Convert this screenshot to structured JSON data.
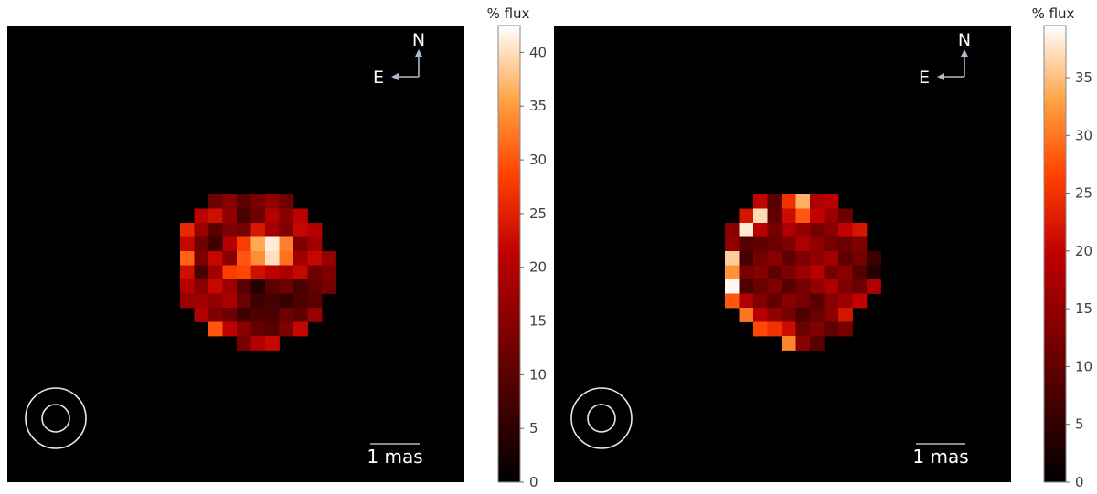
{
  "chart_data": [
    {
      "type": "heatmap",
      "colormap": "gist_heat",
      "background": "#000000",
      "colorbar": {
        "label": "% flux",
        "vmin": 0,
        "vmax": 42.5,
        "ticks": [
          0,
          5,
          10,
          15,
          20,
          25,
          30,
          35,
          40
        ]
      },
      "compass": {
        "north": "N",
        "east": "E"
      },
      "scale_bar": {
        "label": "1 mas"
      },
      "pixels": [
        {
          "row": 0,
          "col": 2,
          "value": 12
        },
        {
          "row": 0,
          "col": 3,
          "value": 15
        },
        {
          "row": 0,
          "col": 4,
          "value": 10
        },
        {
          "row": 0,
          "col": 5,
          "value": 13
        },
        {
          "row": 0,
          "col": 6,
          "value": 16
        },
        {
          "row": 0,
          "col": 7,
          "value": 12
        },
        {
          "row": 1,
          "col": 1,
          "value": 21
        },
        {
          "row": 1,
          "col": 2,
          "value": 23
        },
        {
          "row": 1,
          "col": 3,
          "value": 16
        },
        {
          "row": 1,
          "col": 4,
          "value": 8
        },
        {
          "row": 1,
          "col": 5,
          "value": 12
        },
        {
          "row": 1,
          "col": 6,
          "value": 20
        },
        {
          "row": 1,
          "col": 7,
          "value": 15
        },
        {
          "row": 1,
          "col": 8,
          "value": 21
        },
        {
          "row": 2,
          "col": 0,
          "value": 26
        },
        {
          "row": 2,
          "col": 1,
          "value": 17
        },
        {
          "row": 2,
          "col": 2,
          "value": 10
        },
        {
          "row": 2,
          "col": 3,
          "value": 14
        },
        {
          "row": 2,
          "col": 4,
          "value": 13
        },
        {
          "row": 2,
          "col": 5,
          "value": 24
        },
        {
          "row": 2,
          "col": 6,
          "value": 18
        },
        {
          "row": 2,
          "col": 7,
          "value": 14
        },
        {
          "row": 2,
          "col": 8,
          "value": 22
        },
        {
          "row": 2,
          "col": 9,
          "value": 20
        },
        {
          "row": 3,
          "col": 0,
          "value": 22
        },
        {
          "row": 3,
          "col": 1,
          "value": 12
        },
        {
          "row": 3,
          "col": 2,
          "value": 7
        },
        {
          "row": 3,
          "col": 3,
          "value": 20
        },
        {
          "row": 3,
          "col": 4,
          "value": 28
        },
        {
          "row": 3,
          "col": 5,
          "value": 36
        },
        {
          "row": 3,
          "col": 6,
          "value": 41
        },
        {
          "row": 3,
          "col": 7,
          "value": 33
        },
        {
          "row": 3,
          "col": 8,
          "value": 14
        },
        {
          "row": 3,
          "col": 9,
          "value": 18
        },
        {
          "row": 4,
          "col": 0,
          "value": 31
        },
        {
          "row": 4,
          "col": 1,
          "value": 14
        },
        {
          "row": 4,
          "col": 2,
          "value": 22
        },
        {
          "row": 4,
          "col": 3,
          "value": 15
        },
        {
          "row": 4,
          "col": 4,
          "value": 30
        },
        {
          "row": 4,
          "col": 5,
          "value": 34
        },
        {
          "row": 4,
          "col": 6,
          "value": 40
        },
        {
          "row": 4,
          "col": 7,
          "value": 32
        },
        {
          "row": 4,
          "col": 8,
          "value": 18
        },
        {
          "row": 4,
          "col": 9,
          "value": 22
        },
        {
          "row": 4,
          "col": 10,
          "value": 17
        },
        {
          "row": 5,
          "col": 0,
          "value": 23
        },
        {
          "row": 5,
          "col": 1,
          "value": 8
        },
        {
          "row": 5,
          "col": 2,
          "value": 18
        },
        {
          "row": 5,
          "col": 3,
          "value": 28
        },
        {
          "row": 5,
          "col": 4,
          "value": 29
        },
        {
          "row": 5,
          "col": 5,
          "value": 23
        },
        {
          "row": 5,
          "col": 6,
          "value": 21
        },
        {
          "row": 5,
          "col": 7,
          "value": 19
        },
        {
          "row": 5,
          "col": 8,
          "value": 22
        },
        {
          "row": 5,
          "col": 9,
          "value": 12
        },
        {
          "row": 5,
          "col": 10,
          "value": 14
        },
        {
          "row": 6,
          "col": 0,
          "value": 20
        },
        {
          "row": 6,
          "col": 1,
          "value": 15
        },
        {
          "row": 6,
          "col": 2,
          "value": 22
        },
        {
          "row": 6,
          "col": 3,
          "value": 17
        },
        {
          "row": 6,
          "col": 4,
          "value": 10
        },
        {
          "row": 6,
          "col": 5,
          "value": 4
        },
        {
          "row": 6,
          "col": 6,
          "value": 10
        },
        {
          "row": 6,
          "col": 7,
          "value": 12
        },
        {
          "row": 6,
          "col": 8,
          "value": 8
        },
        {
          "row": 6,
          "col": 9,
          "value": 11
        },
        {
          "row": 6,
          "col": 10,
          "value": 13
        },
        {
          "row": 7,
          "col": 0,
          "value": 17
        },
        {
          "row": 7,
          "col": 1,
          "value": 18
        },
        {
          "row": 7,
          "col": 2,
          "value": 16
        },
        {
          "row": 7,
          "col": 3,
          "value": 19
        },
        {
          "row": 7,
          "col": 4,
          "value": 12
        },
        {
          "row": 7,
          "col": 5,
          "value": 7
        },
        {
          "row": 7,
          "col": 6,
          "value": 8
        },
        {
          "row": 7,
          "col": 7,
          "value": 6
        },
        {
          "row": 7,
          "col": 8,
          "value": 9
        },
        {
          "row": 7,
          "col": 9,
          "value": 10
        },
        {
          "row": 8,
          "col": 1,
          "value": 20
        },
        {
          "row": 8,
          "col": 2,
          "value": 14
        },
        {
          "row": 8,
          "col": 3,
          "value": 12
        },
        {
          "row": 8,
          "col": 4,
          "value": 7
        },
        {
          "row": 8,
          "col": 5,
          "value": 9
        },
        {
          "row": 8,
          "col": 6,
          "value": 8
        },
        {
          "row": 8,
          "col": 7,
          "value": 12
        },
        {
          "row": 8,
          "col": 8,
          "value": 10
        },
        {
          "row": 8,
          "col": 9,
          "value": 17
        },
        {
          "row": 9,
          "col": 2,
          "value": 30
        },
        {
          "row": 9,
          "col": 3,
          "value": 21
        },
        {
          "row": 9,
          "col": 4,
          "value": 15
        },
        {
          "row": 9,
          "col": 5,
          "value": 11
        },
        {
          "row": 9,
          "col": 6,
          "value": 10
        },
        {
          "row": 9,
          "col": 7,
          "value": 14
        },
        {
          "row": 9,
          "col": 8,
          "value": 22
        },
        {
          "row": 10,
          "col": 4,
          "value": 13
        },
        {
          "row": 10,
          "col": 5,
          "value": 20
        },
        {
          "row": 10,
          "col": 6,
          "value": 22
        }
      ]
    },
    {
      "type": "heatmap",
      "colormap": "gist_heat",
      "background": "#000000",
      "colorbar": {
        "label": "% flux",
        "vmin": 0,
        "vmax": 39.5,
        "ticks": [
          0,
          5,
          10,
          15,
          20,
          25,
          30,
          35
        ]
      },
      "compass": {
        "north": "N",
        "east": "E"
      },
      "scale_bar": {
        "label": "1 mas"
      },
      "pixels": [
        {
          "row": 0,
          "col": 2,
          "value": 20
        },
        {
          "row": 0,
          "col": 3,
          "value": 9
        },
        {
          "row": 0,
          "col": 4,
          "value": 25
        },
        {
          "row": 0,
          "col": 5,
          "value": 34
        },
        {
          "row": 0,
          "col": 6,
          "value": 18
        },
        {
          "row": 0,
          "col": 7,
          "value": 19
        },
        {
          "row": 1,
          "col": 1,
          "value": 22
        },
        {
          "row": 1,
          "col": 2,
          "value": 37
        },
        {
          "row": 1,
          "col": 3,
          "value": 10
        },
        {
          "row": 1,
          "col": 4,
          "value": 21
        },
        {
          "row": 1,
          "col": 5,
          "value": 28
        },
        {
          "row": 1,
          "col": 6,
          "value": 20
        },
        {
          "row": 1,
          "col": 7,
          "value": 16
        },
        {
          "row": 1,
          "col": 8,
          "value": 11
        },
        {
          "row": 2,
          "col": 0,
          "value": 14
        },
        {
          "row": 2,
          "col": 1,
          "value": 38
        },
        {
          "row": 2,
          "col": 2,
          "value": 19
        },
        {
          "row": 2,
          "col": 3,
          "value": 12
        },
        {
          "row": 2,
          "col": 4,
          "value": 18
        },
        {
          "row": 2,
          "col": 5,
          "value": 15
        },
        {
          "row": 2,
          "col": 6,
          "value": 12
        },
        {
          "row": 2,
          "col": 7,
          "value": 14
        },
        {
          "row": 2,
          "col": 8,
          "value": 20
        },
        {
          "row": 2,
          "col": 9,
          "value": 22
        },
        {
          "row": 3,
          "col": 0,
          "value": 15
        },
        {
          "row": 3,
          "col": 1,
          "value": 9
        },
        {
          "row": 3,
          "col": 2,
          "value": 10
        },
        {
          "row": 3,
          "col": 3,
          "value": 11
        },
        {
          "row": 3,
          "col": 4,
          "value": 13
        },
        {
          "row": 3,
          "col": 5,
          "value": 18
        },
        {
          "row": 3,
          "col": 6,
          "value": 15
        },
        {
          "row": 3,
          "col": 7,
          "value": 12
        },
        {
          "row": 3,
          "col": 8,
          "value": 11
        },
        {
          "row": 3,
          "col": 9,
          "value": 13
        },
        {
          "row": 4,
          "col": 0,
          "value": 36
        },
        {
          "row": 4,
          "col": 1,
          "value": 7
        },
        {
          "row": 4,
          "col": 2,
          "value": 12
        },
        {
          "row": 4,
          "col": 3,
          "value": 14
        },
        {
          "row": 4,
          "col": 4,
          "value": 10
        },
        {
          "row": 4,
          "col": 5,
          "value": 13
        },
        {
          "row": 4,
          "col": 6,
          "value": 15
        },
        {
          "row": 4,
          "col": 7,
          "value": 17
        },
        {
          "row": 4,
          "col": 8,
          "value": 10
        },
        {
          "row": 4,
          "col": 9,
          "value": 12
        },
        {
          "row": 4,
          "col": 10,
          "value": 6
        },
        {
          "row": 5,
          "col": 0,
          "value": 32
        },
        {
          "row": 5,
          "col": 1,
          "value": 12
        },
        {
          "row": 5,
          "col": 2,
          "value": 14
        },
        {
          "row": 5,
          "col": 3,
          "value": 10
        },
        {
          "row": 5,
          "col": 4,
          "value": 13
        },
        {
          "row": 5,
          "col": 5,
          "value": 16
        },
        {
          "row": 5,
          "col": 6,
          "value": 19
        },
        {
          "row": 5,
          "col": 7,
          "value": 12
        },
        {
          "row": 5,
          "col": 8,
          "value": 14
        },
        {
          "row": 5,
          "col": 9,
          "value": 9
        },
        {
          "row": 5,
          "col": 10,
          "value": 4
        },
        {
          "row": 6,
          "col": 0,
          "value": 39
        },
        {
          "row": 6,
          "col": 1,
          "value": 8
        },
        {
          "row": 6,
          "col": 2,
          "value": 11
        },
        {
          "row": 6,
          "col": 3,
          "value": 13
        },
        {
          "row": 6,
          "col": 4,
          "value": 9
        },
        {
          "row": 6,
          "col": 5,
          "value": 12
        },
        {
          "row": 6,
          "col": 6,
          "value": 15
        },
        {
          "row": 6,
          "col": 7,
          "value": 18
        },
        {
          "row": 6,
          "col": 8,
          "value": 13
        },
        {
          "row": 6,
          "col": 9,
          "value": 11
        },
        {
          "row": 6,
          "col": 10,
          "value": 18
        },
        {
          "row": 7,
          "col": 0,
          "value": 28
        },
        {
          "row": 7,
          "col": 1,
          "value": 18
        },
        {
          "row": 7,
          "col": 2,
          "value": 13
        },
        {
          "row": 7,
          "col": 3,
          "value": 10
        },
        {
          "row": 7,
          "col": 4,
          "value": 14
        },
        {
          "row": 7,
          "col": 5,
          "value": 12
        },
        {
          "row": 7,
          "col": 6,
          "value": 9
        },
        {
          "row": 7,
          "col": 7,
          "value": 14
        },
        {
          "row": 7,
          "col": 8,
          "value": 16
        },
        {
          "row": 7,
          "col": 9,
          "value": 20
        },
        {
          "row": 8,
          "col": 1,
          "value": 30
        },
        {
          "row": 8,
          "col": 2,
          "value": 19
        },
        {
          "row": 8,
          "col": 3,
          "value": 15
        },
        {
          "row": 8,
          "col": 4,
          "value": 12
        },
        {
          "row": 8,
          "col": 5,
          "value": 8
        },
        {
          "row": 8,
          "col": 6,
          "value": 11
        },
        {
          "row": 8,
          "col": 7,
          "value": 14
        },
        {
          "row": 8,
          "col": 8,
          "value": 22
        },
        {
          "row": 9,
          "col": 2,
          "value": 27
        },
        {
          "row": 9,
          "col": 3,
          "value": 25
        },
        {
          "row": 9,
          "col": 4,
          "value": 21
        },
        {
          "row": 9,
          "col": 5,
          "value": 11
        },
        {
          "row": 9,
          "col": 6,
          "value": 13
        },
        {
          "row": 9,
          "col": 7,
          "value": 10
        },
        {
          "row": 9,
          "col": 8,
          "value": 12
        },
        {
          "row": 10,
          "col": 4,
          "value": 31
        },
        {
          "row": 10,
          "col": 5,
          "value": 14
        },
        {
          "row": 10,
          "col": 6,
          "value": 9
        }
      ]
    }
  ]
}
